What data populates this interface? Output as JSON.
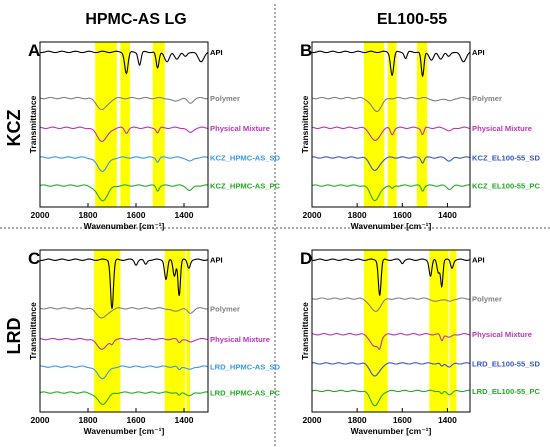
{
  "figure": {
    "column_titles": [
      "HPMC-AS LG",
      "EL100-55"
    ],
    "row_titles": [
      "KCZ",
      "LRD"
    ]
  },
  "chart_data": [
    {
      "type": "line",
      "panel": "A",
      "xlabel": "Wavenumber [cm⁻¹]",
      "ylabel": "Transmittance",
      "xlim": [
        2000,
        1300
      ],
      "x_reversed": true,
      "xticks": [
        2000,
        1800,
        1600,
        1400
      ],
      "highlight_bands": [
        [
          1770,
          1680
        ],
        [
          1665,
          1625
        ],
        [
          1530,
          1505
        ],
        [
          1505,
          1480
        ]
      ],
      "series": [
        {
          "name": "API",
          "color": "#000000",
          "baseline": 0.06,
          "bands": [
            [
              1640,
              0.13,
              7
            ],
            [
              1585,
              0.08,
              6
            ],
            [
              1510,
              0.1,
              6
            ],
            [
              1470,
              0.06,
              10
            ],
            [
              1430,
              0.04,
              10
            ],
            [
              1395,
              0.03,
              8
            ],
            [
              1330,
              0.06,
              12
            ]
          ]
        },
        {
          "name": "Polymer",
          "color": "#808080",
          "baseline": 0.34,
          "bands": [
            [
              1740,
              0.07,
              22
            ],
            [
              1440,
              0.02,
              15
            ],
            [
              1375,
              0.03,
              12
            ]
          ]
        },
        {
          "name": "Physical Mixture",
          "color": "#bb33bb",
          "baseline": 0.52,
          "bands": [
            [
              1740,
              0.08,
              22
            ],
            [
              1640,
              0.03,
              7
            ],
            [
              1510,
              0.03,
              6
            ],
            [
              1375,
              0.03,
              12
            ]
          ]
        },
        {
          "name": "KCZ_HPMC-AS_SD",
          "color": "#3399ee",
          "baseline": 0.7,
          "bands": [
            [
              1740,
              0.08,
              22
            ],
            [
              1510,
              0.025,
              6
            ],
            [
              1375,
              0.025,
              12
            ]
          ]
        },
        {
          "name": "KCZ_HPMC-AS_PC",
          "color": "#22aa22",
          "baseline": 0.87,
          "bands": [
            [
              1740,
              0.09,
              22
            ],
            [
              1510,
              0.03,
              6
            ],
            [
              1375,
              0.03,
              12
            ]
          ]
        }
      ]
    },
    {
      "type": "line",
      "panel": "B",
      "xlabel": "Wavenumber [cm⁻¹]",
      "ylabel": "Transmittance",
      "xlim": [
        2000,
        1300
      ],
      "x_reversed": true,
      "xticks": [
        2000,
        1800,
        1600,
        1400
      ],
      "highlight_bands": [
        [
          1770,
          1680
        ],
        [
          1665,
          1625
        ],
        [
          1535,
          1490
        ]
      ],
      "series": [
        {
          "name": "API",
          "color": "#000000",
          "baseline": 0.06,
          "bands": [
            [
              1645,
              0.14,
              7
            ],
            [
              1585,
              0.04,
              6
            ],
            [
              1510,
              0.15,
              6
            ],
            [
              1470,
              0.05,
              10
            ],
            [
              1430,
              0.04,
              10
            ],
            [
              1395,
              0.03,
              8
            ],
            [
              1330,
              0.06,
              12
            ]
          ]
        },
        {
          "name": "Polymer",
          "color": "#808080",
          "baseline": 0.34,
          "bands": [
            [
              1715,
              0.08,
              22
            ],
            [
              1450,
              0.02,
              15
            ],
            [
              1390,
              0.02,
              12
            ]
          ]
        },
        {
          "name": "Physical Mixture",
          "color": "#bb33bb",
          "baseline": 0.52,
          "bands": [
            [
              1720,
              0.08,
              20
            ],
            [
              1645,
              0.04,
              7
            ],
            [
              1510,
              0.04,
              6
            ],
            [
              1390,
              0.02,
              12
            ]
          ]
        },
        {
          "name": "KCZ_EL100-55_SD",
          "color": "#3355cc",
          "baseline": 0.7,
          "bands": [
            [
              1720,
              0.08,
              20
            ],
            [
              1510,
              0.03,
              6
            ],
            [
              1390,
              0.02,
              12
            ]
          ]
        },
        {
          "name": "KCZ_EL100-55_PC",
          "color": "#22aa22",
          "baseline": 0.87,
          "bands": [
            [
              1720,
              0.09,
              20
            ],
            [
              1645,
              0.02,
              7
            ],
            [
              1510,
              0.03,
              6
            ],
            [
              1390,
              0.02,
              12
            ]
          ]
        }
      ]
    },
    {
      "type": "line",
      "panel": "C",
      "xlabel": "Wavenumber [cm⁻¹]",
      "ylabel": "Transmittance",
      "xlim": [
        2000,
        1300
      ],
      "x_reversed": true,
      "xticks": [
        2000,
        1800,
        1600,
        1400
      ],
      "highlight_bands": [
        [
          1775,
          1665
        ],
        [
          1480,
          1395
        ],
        [
          1390,
          1375
        ]
      ],
      "series": [
        {
          "name": "API",
          "color": "#000000",
          "baseline": 0.06,
          "bands": [
            [
              1700,
              0.3,
              6
            ],
            [
              1600,
              0.03,
              6
            ],
            [
              1560,
              0.03,
              6
            ],
            [
              1475,
              0.12,
              6
            ],
            [
              1440,
              0.1,
              6
            ],
            [
              1420,
              0.22,
              5
            ],
            [
              1380,
              0.05,
              6
            ]
          ]
        },
        {
          "name": "Polymer",
          "color": "#808080",
          "baseline": 0.36,
          "bands": [
            [
              1740,
              0.06,
              22
            ],
            [
              1440,
              0.02,
              15
            ],
            [
              1375,
              0.03,
              12
            ]
          ]
        },
        {
          "name": "Physical Mixture",
          "color": "#bb33bb",
          "baseline": 0.55,
          "bands": [
            [
              1740,
              0.06,
              22
            ],
            [
              1700,
              0.02,
              6
            ],
            [
              1420,
              0.02,
              6
            ],
            [
              1375,
              0.02,
              12
            ]
          ]
        },
        {
          "name": "LRD_HPMC-AS_SD",
          "color": "#3399ee",
          "baseline": 0.72,
          "bands": [
            [
              1740,
              0.07,
              22
            ],
            [
              1420,
              0.02,
              6
            ],
            [
              1375,
              0.02,
              12
            ]
          ]
        },
        {
          "name": "LRD_HPMC-AS_PC",
          "color": "#22aa22",
          "baseline": 0.88,
          "bands": [
            [
              1740,
              0.07,
              22
            ],
            [
              1420,
              0.02,
              6
            ],
            [
              1375,
              0.02,
              12
            ]
          ]
        }
      ]
    },
    {
      "type": "line",
      "panel": "D",
      "xlabel": "Wavenumber [cm⁻¹]",
      "ylabel": "Transmittance",
      "xlim": [
        2000,
        1300
      ],
      "x_reversed": true,
      "xticks": [
        2000,
        1800,
        1600,
        1400
      ],
      "highlight_bands": [
        [
          1770,
          1665
        ],
        [
          1480,
          1395
        ],
        [
          1390,
          1360
        ]
      ],
      "series": [
        {
          "name": "API",
          "color": "#000000",
          "baseline": 0.06,
          "bands": [
            [
              1700,
              0.22,
              6
            ],
            [
              1600,
              0.02,
              6
            ],
            [
              1475,
              0.1,
              6
            ],
            [
              1440,
              0.08,
              6
            ],
            [
              1425,
              0.16,
              5
            ],
            [
              1380,
              0.05,
              6
            ]
          ]
        },
        {
          "name": "Polymer",
          "color": "#808080",
          "baseline": 0.3,
          "bands": [
            [
              1720,
              0.08,
              22
            ],
            [
              1450,
              0.02,
              15
            ],
            [
              1390,
              0.02,
              12
            ]
          ]
        },
        {
          "name": "Physical Mixture",
          "color": "#bb33bb",
          "baseline": 0.52,
          "bands": [
            [
              1720,
              0.08,
              20
            ],
            [
              1700,
              0.04,
              6
            ],
            [
              1425,
              0.04,
              6
            ],
            [
              1390,
              0.02,
              12
            ]
          ]
        },
        {
          "name": "LRD_EL100-55_SD",
          "color": "#3355cc",
          "baseline": 0.7,
          "bands": [
            [
              1720,
              0.08,
              20
            ],
            [
              1425,
              0.02,
              6
            ],
            [
              1390,
              0.02,
              12
            ]
          ]
        },
        {
          "name": "LRD_EL100-55_PC",
          "color": "#22aa22",
          "baseline": 0.87,
          "bands": [
            [
              1720,
              0.09,
              20
            ],
            [
              1425,
              0.02,
              6
            ],
            [
              1390,
              0.02,
              12
            ]
          ]
        }
      ]
    }
  ]
}
